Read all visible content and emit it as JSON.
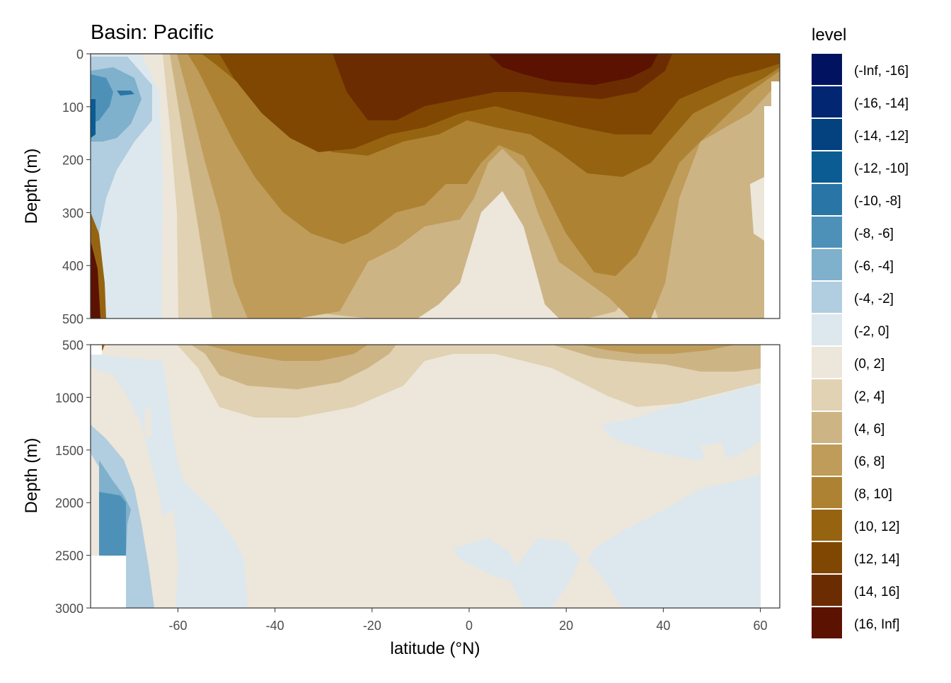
{
  "title": "Basin: Pacific",
  "chart_data": {
    "type": "heatmap",
    "title": "Basin: Pacific",
    "xlabel": "latitude (°N)",
    "ylabel": "Depth (m)",
    "xlim": [
      -78,
      64
    ],
    "x_ticks": [
      "-60",
      "-40",
      "-20",
      "0",
      "20",
      "40",
      "60"
    ],
    "panels": [
      {
        "ylim": [
          0,
          500
        ],
        "y_reversed": true,
        "y_ticks": [
          "0",
          "100",
          "200",
          "300",
          "400",
          "500"
        ]
      },
      {
        "ylim": [
          500,
          3000
        ],
        "y_reversed": true,
        "y_ticks": [
          "500",
          "1000",
          "1500",
          "2000",
          "2500",
          "3000"
        ]
      }
    ],
    "legend": {
      "title": "level",
      "position": "right",
      "levels": [
        {
          "label": "(-Inf, -16]",
          "color": "#001260"
        },
        {
          "label": "(-16, -14]",
          "color": "#032673"
        },
        {
          "label": "(-14, -12]",
          "color": "#04417f"
        },
        {
          "label": "(-12, -10]",
          "color": "#0b5c92"
        },
        {
          "label": "(-10, -8]",
          "color": "#2975a5"
        },
        {
          "label": "(-8, -6]",
          "color": "#4d91b8"
        },
        {
          "label": "(-6, -4]",
          "color": "#7fb0cc"
        },
        {
          "label": "(-4, -2]",
          "color": "#b1cde0"
        },
        {
          "label": "(-2, 0]",
          "color": "#dde8ee"
        },
        {
          "label": "(0, 2]",
          "color": "#ede6da"
        },
        {
          "label": "(2, 4]",
          "color": "#e0d2b2"
        },
        {
          "label": "(4, 6]",
          "color": "#cdb485"
        },
        {
          "label": "(6, 8]",
          "color": "#bf9c59"
        },
        {
          "label": "(8, 10]",
          "color": "#ad8333"
        },
        {
          "label": "(10, 12]",
          "color": "#966411"
        },
        {
          "label": "(12, 14]",
          "color": "#804702"
        },
        {
          "label": "(14, 16]",
          "color": "#6c2c01"
        },
        {
          "label": "(16, Inf]",
          "color": "#5b1200"
        }
      ]
    },
    "grid": true
  }
}
